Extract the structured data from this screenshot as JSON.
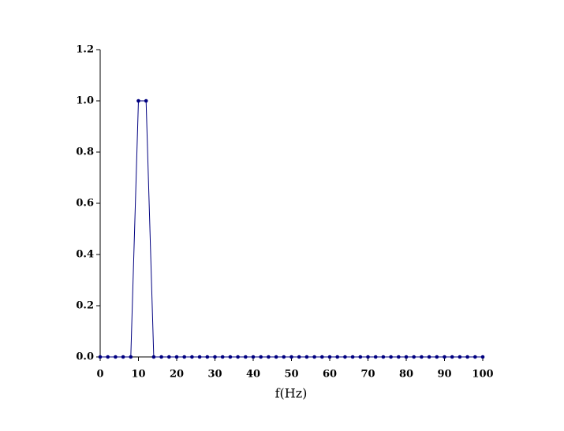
{
  "chart_data": {
    "type": "line",
    "xlabel": "f(Hz)",
    "x": [
      0,
      2,
      4,
      6,
      8,
      10,
      12,
      14,
      16,
      18,
      20,
      22,
      24,
      26,
      28,
      30,
      32,
      34,
      36,
      38,
      40,
      42,
      44,
      46,
      48,
      50,
      52,
      54,
      56,
      58,
      60,
      62,
      64,
      66,
      68,
      70,
      72,
      74,
      76,
      78,
      80,
      82,
      84,
      86,
      88,
      90,
      92,
      94,
      96,
      98,
      100
    ],
    "values": [
      0,
      0,
      0,
      0,
      0,
      1,
      1,
      0,
      0,
      0,
      0,
      0,
      0,
      0,
      0,
      0,
      0,
      0,
      0,
      0,
      0,
      0,
      0,
      0,
      0,
      0,
      0,
      0,
      0,
      0,
      0,
      0,
      0,
      0,
      0,
      0,
      0,
      0,
      0,
      0,
      0,
      0,
      0,
      0,
      0,
      0,
      0,
      0,
      0,
      0,
      0
    ],
    "color": "#000080",
    "xlim": [
      0,
      100
    ],
    "xticks": [
      0,
      10,
      20,
      30,
      40,
      50,
      60,
      70,
      80,
      90,
      100
    ],
    "ylim": [
      0,
      1.2
    ],
    "yticks": [
      {
        "value": 0,
        "label": "0.0"
      },
      0.2,
      0.4,
      0.6,
      0.8,
      {
        "value": 1,
        "label": "1.0"
      },
      1.2
    ],
    "grid": false
  }
}
